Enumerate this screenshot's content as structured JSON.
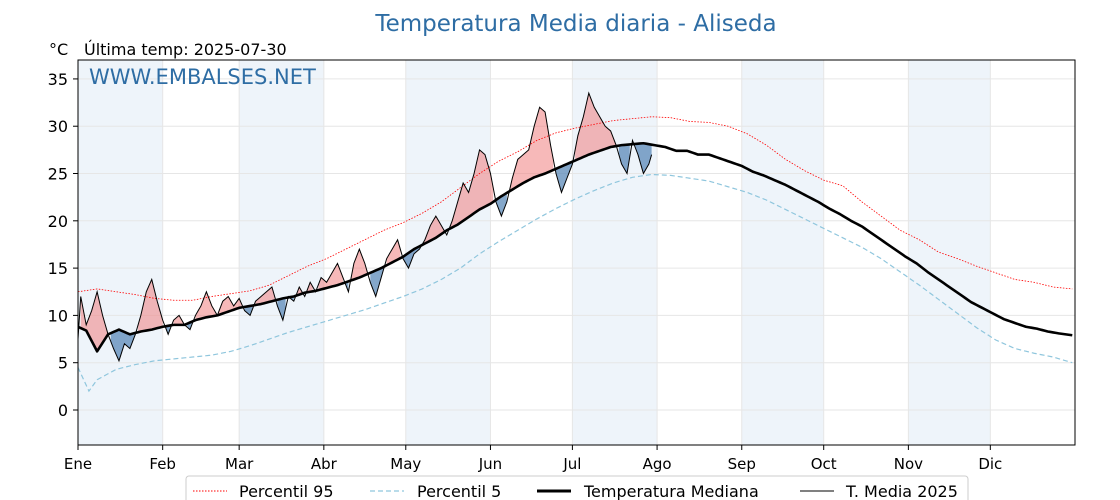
{
  "header": {
    "title": "Temperatura Media diaria - Aliseda",
    "unit": "°C",
    "last_temp": "Última temp: 2025-07-30",
    "watermark": "WWW.EMBALSES.NET"
  },
  "legend": {
    "p95": "Percentil 95",
    "p5": "Percentil 5",
    "median": "Temperatura Mediana",
    "current": "T. Media 2025"
  },
  "colors": {
    "title": "#2e6da4",
    "p95": "#ff0000",
    "p5": "#8fc6dd",
    "median": "#000000",
    "current": "#000000",
    "above_fill": "#f08080",
    "below_fill": "#5b8ab8",
    "band": "#eef4fa"
  },
  "chart_data": {
    "type": "line",
    "title": "Temperatura Media diaria - Aliseda",
    "ylabel": "°C",
    "ylim": [
      -3.7,
      37
    ],
    "yticks": [
      0,
      5,
      10,
      15,
      20,
      25,
      30,
      35
    ],
    "month_ticks": [
      {
        "label": "Ene",
        "day": 1
      },
      {
        "label": "Feb",
        "day": 32
      },
      {
        "label": "Mar",
        "day": 60
      },
      {
        "label": "Abr",
        "day": 91
      },
      {
        "label": "May",
        "day": 121
      },
      {
        "label": "Jun",
        "day": 152
      },
      {
        "label": "Jul",
        "day": 182
      },
      {
        "label": "Ago",
        "day": 213
      },
      {
        "label": "Sep",
        "day": 244
      },
      {
        "label": "Oct",
        "day": 274
      },
      {
        "label": "Nov",
        "day": 305
      },
      {
        "label": "Dic",
        "day": 335
      }
    ],
    "last_day": 211,
    "series": [
      {
        "name": "Percentil 95",
        "style": "dotted-red",
        "points": [
          [
            1,
            12.5
          ],
          [
            8,
            12.8
          ],
          [
            15,
            12.5
          ],
          [
            22,
            12.2
          ],
          [
            29,
            11.8
          ],
          [
            36,
            11.6
          ],
          [
            43,
            11.6
          ],
          [
            50,
            12.0
          ],
          [
            57,
            12.3
          ],
          [
            64,
            12.6
          ],
          [
            71,
            13.2
          ],
          [
            78,
            14.2
          ],
          [
            85,
            15.2
          ],
          [
            92,
            16.0
          ],
          [
            99,
            17.0
          ],
          [
            106,
            18.0
          ],
          [
            113,
            19.0
          ],
          [
            120,
            19.8
          ],
          [
            127,
            20.8
          ],
          [
            134,
            22.0
          ],
          [
            141,
            23.5
          ],
          [
            148,
            25.0
          ],
          [
            155,
            26.3
          ],
          [
            162,
            27.3
          ],
          [
            169,
            28.5
          ],
          [
            176,
            29.3
          ],
          [
            183,
            29.8
          ],
          [
            190,
            30.2
          ],
          [
            197,
            30.6
          ],
          [
            204,
            30.8
          ],
          [
            211,
            31.0
          ],
          [
            218,
            30.9
          ],
          [
            225,
            30.5
          ],
          [
            232,
            30.4
          ],
          [
            239,
            30.0
          ],
          [
            246,
            29.2
          ],
          [
            253,
            28.0
          ],
          [
            260,
            26.5
          ],
          [
            267,
            25.3
          ],
          [
            274,
            24.3
          ],
          [
            281,
            23.7
          ],
          [
            288,
            22.0
          ],
          [
            295,
            20.5
          ],
          [
            302,
            19.0
          ],
          [
            309,
            18.0
          ],
          [
            316,
            16.7
          ],
          [
            323,
            16.0
          ],
          [
            330,
            15.2
          ],
          [
            337,
            14.5
          ],
          [
            344,
            13.8
          ],
          [
            351,
            13.5
          ],
          [
            358,
            13.0
          ],
          [
            365,
            12.8
          ]
        ]
      },
      {
        "name": "Percentil 5",
        "style": "dashed-lightblue",
        "points": [
          [
            1,
            4.5
          ],
          [
            5,
            2.0
          ],
          [
            8,
            3.2
          ],
          [
            15,
            4.3
          ],
          [
            22,
            4.8
          ],
          [
            29,
            5.2
          ],
          [
            36,
            5.4
          ],
          [
            43,
            5.6
          ],
          [
            50,
            5.8
          ],
          [
            57,
            6.2
          ],
          [
            64,
            6.8
          ],
          [
            71,
            7.5
          ],
          [
            78,
            8.2
          ],
          [
            85,
            8.8
          ],
          [
            92,
            9.4
          ],
          [
            99,
            10.0
          ],
          [
            106,
            10.6
          ],
          [
            113,
            11.3
          ],
          [
            120,
            12.0
          ],
          [
            127,
            12.8
          ],
          [
            134,
            13.8
          ],
          [
            141,
            15.0
          ],
          [
            148,
            16.5
          ],
          [
            155,
            17.8
          ],
          [
            162,
            19.0
          ],
          [
            169,
            20.2
          ],
          [
            176,
            21.3
          ],
          [
            183,
            22.3
          ],
          [
            190,
            23.2
          ],
          [
            197,
            24.0
          ],
          [
            204,
            24.6
          ],
          [
            211,
            24.9
          ],
          [
            218,
            24.8
          ],
          [
            225,
            24.5
          ],
          [
            232,
            24.2
          ],
          [
            239,
            23.6
          ],
          [
            246,
            23.0
          ],
          [
            253,
            22.2
          ],
          [
            260,
            21.2
          ],
          [
            267,
            20.2
          ],
          [
            274,
            19.2
          ],
          [
            281,
            18.2
          ],
          [
            288,
            17.2
          ],
          [
            295,
            16.0
          ],
          [
            302,
            14.6
          ],
          [
            309,
            13.2
          ],
          [
            316,
            11.7
          ],
          [
            323,
            10.2
          ],
          [
            330,
            8.7
          ],
          [
            337,
            7.4
          ],
          [
            344,
            6.5
          ],
          [
            351,
            6.0
          ],
          [
            358,
            5.6
          ],
          [
            365,
            5.0
          ]
        ]
      },
      {
        "name": "Temperatura Mediana",
        "style": "thick-black",
        "points": [
          [
            1,
            8.8
          ],
          [
            4,
            8.4
          ],
          [
            8,
            6.2
          ],
          [
            12,
            8.0
          ],
          [
            16,
            8.5
          ],
          [
            20,
            8.0
          ],
          [
            24,
            8.3
          ],
          [
            28,
            8.5
          ],
          [
            32,
            8.8
          ],
          [
            36,
            9.0
          ],
          [
            40,
            9.0
          ],
          [
            44,
            9.5
          ],
          [
            48,
            9.8
          ],
          [
            52,
            10.0
          ],
          [
            56,
            10.4
          ],
          [
            60,
            10.8
          ],
          [
            64,
            11.0
          ],
          [
            68,
            11.2
          ],
          [
            72,
            11.5
          ],
          [
            76,
            11.8
          ],
          [
            80,
            12.0
          ],
          [
            84,
            12.4
          ],
          [
            88,
            12.6
          ],
          [
            92,
            12.9
          ],
          [
            96,
            13.2
          ],
          [
            100,
            13.6
          ],
          [
            104,
            14.0
          ],
          [
            108,
            14.5
          ],
          [
            112,
            15.0
          ],
          [
            116,
            15.6
          ],
          [
            120,
            16.2
          ],
          [
            124,
            17.0
          ],
          [
            128,
            17.6
          ],
          [
            132,
            18.2
          ],
          [
            136,
            19.0
          ],
          [
            140,
            19.6
          ],
          [
            144,
            20.4
          ],
          [
            148,
            21.2
          ],
          [
            152,
            21.8
          ],
          [
            156,
            22.6
          ],
          [
            160,
            23.3
          ],
          [
            164,
            24.0
          ],
          [
            168,
            24.6
          ],
          [
            172,
            25.0
          ],
          [
            176,
            25.5
          ],
          [
            180,
            26.0
          ],
          [
            184,
            26.5
          ],
          [
            188,
            27.0
          ],
          [
            192,
            27.4
          ],
          [
            196,
            27.8
          ],
          [
            200,
            28.0
          ],
          [
            204,
            28.1
          ],
          [
            208,
            28.2
          ],
          [
            212,
            28.0
          ],
          [
            216,
            27.8
          ],
          [
            220,
            27.4
          ],
          [
            224,
            27.4
          ],
          [
            228,
            27.0
          ],
          [
            232,
            27.0
          ],
          [
            236,
            26.6
          ],
          [
            240,
            26.2
          ],
          [
            244,
            25.8
          ],
          [
            248,
            25.2
          ],
          [
            252,
            24.8
          ],
          [
            256,
            24.3
          ],
          [
            260,
            23.8
          ],
          [
            264,
            23.2
          ],
          [
            268,
            22.6
          ],
          [
            272,
            22.0
          ],
          [
            276,
            21.3
          ],
          [
            280,
            20.7
          ],
          [
            284,
            20.0
          ],
          [
            288,
            19.4
          ],
          [
            292,
            18.6
          ],
          [
            296,
            17.8
          ],
          [
            300,
            17.0
          ],
          [
            304,
            16.2
          ],
          [
            308,
            15.5
          ],
          [
            312,
            14.6
          ],
          [
            316,
            13.8
          ],
          [
            320,
            13.0
          ],
          [
            324,
            12.2
          ],
          [
            328,
            11.4
          ],
          [
            332,
            10.8
          ],
          [
            336,
            10.2
          ],
          [
            340,
            9.6
          ],
          [
            344,
            9.2
          ],
          [
            348,
            8.8
          ],
          [
            352,
            8.6
          ],
          [
            356,
            8.3
          ],
          [
            360,
            8.1
          ],
          [
            365,
            7.9
          ]
        ]
      },
      {
        "name": "T. Media 2025",
        "style": "thin-black",
        "points": [
          [
            1,
            7.5
          ],
          [
            2,
            12.0
          ],
          [
            4,
            9.0
          ],
          [
            6,
            10.5
          ],
          [
            8,
            12.5
          ],
          [
            10,
            10.0
          ],
          [
            12,
            8.0
          ],
          [
            14,
            6.5
          ],
          [
            16,
            5.2
          ],
          [
            18,
            7.0
          ],
          [
            20,
            6.5
          ],
          [
            22,
            8.0
          ],
          [
            24,
            10.0
          ],
          [
            26,
            12.5
          ],
          [
            28,
            13.8
          ],
          [
            30,
            11.5
          ],
          [
            32,
            9.5
          ],
          [
            34,
            8.0
          ],
          [
            36,
            9.5
          ],
          [
            38,
            10.0
          ],
          [
            40,
            9.0
          ],
          [
            42,
            8.5
          ],
          [
            44,
            10.0
          ],
          [
            46,
            11.0
          ],
          [
            48,
            12.5
          ],
          [
            50,
            11.0
          ],
          [
            52,
            10.0
          ],
          [
            54,
            11.5
          ],
          [
            56,
            12.0
          ],
          [
            58,
            11.0
          ],
          [
            60,
            11.8
          ],
          [
            62,
            10.5
          ],
          [
            64,
            10.0
          ],
          [
            66,
            11.5
          ],
          [
            68,
            12.0
          ],
          [
            70,
            12.5
          ],
          [
            72,
            13.0
          ],
          [
            74,
            11.0
          ],
          [
            76,
            9.5
          ],
          [
            78,
            12.0
          ],
          [
            80,
            11.5
          ],
          [
            82,
            13.0
          ],
          [
            84,
            12.0
          ],
          [
            86,
            13.5
          ],
          [
            88,
            12.5
          ],
          [
            90,
            14.0
          ],
          [
            92,
            13.5
          ],
          [
            94,
            14.5
          ],
          [
            96,
            15.5
          ],
          [
            98,
            14.0
          ],
          [
            100,
            12.5
          ],
          [
            102,
            15.5
          ],
          [
            104,
            17.0
          ],
          [
            106,
            15.5
          ],
          [
            108,
            13.5
          ],
          [
            110,
            12.0
          ],
          [
            112,
            14.0
          ],
          [
            114,
            16.0
          ],
          [
            116,
            17.0
          ],
          [
            118,
            18.0
          ],
          [
            120,
            16.0
          ],
          [
            122,
            15.0
          ],
          [
            124,
            16.5
          ],
          [
            126,
            17.0
          ],
          [
            128,
            18.0
          ],
          [
            130,
            19.5
          ],
          [
            132,
            20.5
          ],
          [
            134,
            19.5
          ],
          [
            136,
            18.5
          ],
          [
            138,
            20.0
          ],
          [
            140,
            22.0
          ],
          [
            142,
            24.0
          ],
          [
            144,
            23.0
          ],
          [
            146,
            25.0
          ],
          [
            148,
            27.5
          ],
          [
            150,
            27.0
          ],
          [
            152,
            25.0
          ],
          [
            154,
            22.0
          ],
          [
            156,
            20.5
          ],
          [
            158,
            22.0
          ],
          [
            160,
            24.5
          ],
          [
            162,
            26.5
          ],
          [
            164,
            27.0
          ],
          [
            166,
            27.5
          ],
          [
            168,
            30.0
          ],
          [
            170,
            32.0
          ],
          [
            172,
            31.5
          ],
          [
            174,
            28.0
          ],
          [
            176,
            25.0
          ],
          [
            178,
            23.0
          ],
          [
            180,
            24.5
          ],
          [
            182,
            26.0
          ],
          [
            184,
            29.0
          ],
          [
            186,
            31.0
          ],
          [
            188,
            33.5
          ],
          [
            190,
            32.0
          ],
          [
            192,
            31.0
          ],
          [
            194,
            30.0
          ],
          [
            196,
            29.5
          ],
          [
            198,
            28.0
          ],
          [
            200,
            26.0
          ],
          [
            202,
            25.0
          ],
          [
            204,
            28.5
          ],
          [
            206,
            27.0
          ],
          [
            208,
            25.0
          ],
          [
            210,
            26.0
          ],
          [
            211,
            27.0
          ]
        ]
      }
    ]
  }
}
